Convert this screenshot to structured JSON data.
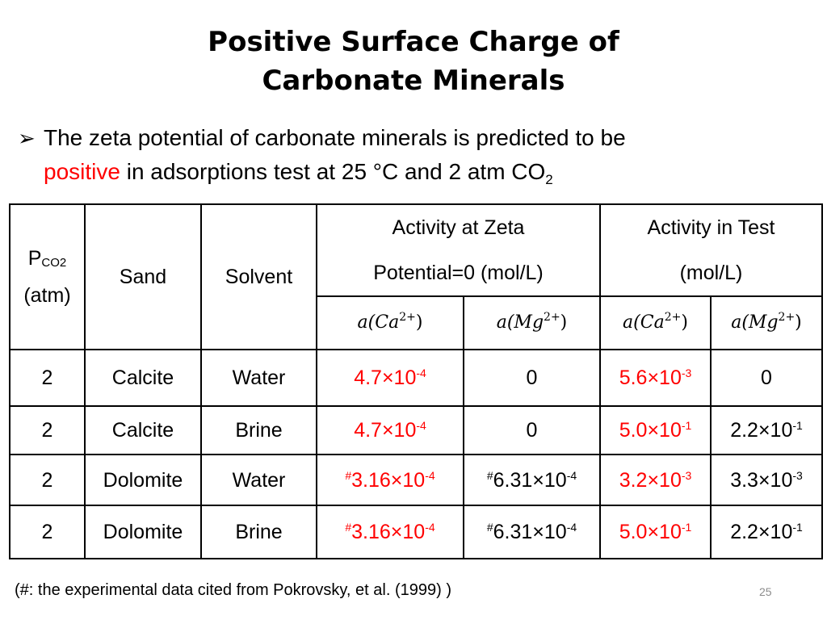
{
  "slide": {
    "title_line1": "Positive Surface Charge of",
    "title_line2": "Carbonate Minerals",
    "bullet": {
      "icon": "arrow-right-bullet",
      "text_part1": "The zeta potential of carbonate minerals is predicted to be",
      "highlight": "positive",
      "text_part2": " in adsorptions test at 25 °C and 2 atm CO",
      "subscript": "2"
    },
    "footnote": "(#: the experimental data cited from Pokrovsky, et al. (1999) )",
    "page_number": "25",
    "colors": {
      "highlight": "#ff0000",
      "border": "#000000",
      "page_number": "#8c8c8c"
    }
  },
  "table": {
    "headers": {
      "pco2_p": "P",
      "pco2_sub": "CO2",
      "pco2_unit": "(atm)",
      "sand": "Sand",
      "solvent": "Solvent",
      "zeta_line1": "Activity at Zeta",
      "zeta_line2": "Potential=0 (mol/L)",
      "test_line1": "Activity in Test",
      "test_line2": "(mol/L)",
      "sub": [
        {
          "a": "a(",
          "el": "Ca",
          "charge": "2+",
          "close": ")"
        },
        {
          "a": "a(",
          "el": "Mg",
          "charge": "2+",
          "close": ")"
        },
        {
          "a": "a(",
          "el": "Ca",
          "charge": "2+",
          "close": ")"
        },
        {
          "a": "a(",
          "el": "Mg",
          "charge": "2+",
          "close": ")"
        }
      ]
    },
    "rows": [
      {
        "pco2": "2",
        "sand": "Calcite",
        "solvent": "Water",
        "zeta_ca": {
          "hash": "",
          "mant": "4.7×10",
          "exp": "-4"
        },
        "zeta_mg": {
          "hash": "",
          "mant": "0",
          "exp": ""
        },
        "test_ca": {
          "mant": "5.6×10",
          "exp": "-3"
        },
        "test_mg": {
          "mant": "0",
          "exp": ""
        }
      },
      {
        "pco2": "2",
        "sand": "Calcite",
        "solvent": "Brine",
        "zeta_ca": {
          "hash": "",
          "mant": "4.7×10",
          "exp": "-4"
        },
        "zeta_mg": {
          "hash": "",
          "mant": "0",
          "exp": ""
        },
        "test_ca": {
          "mant": "5.0×10",
          "exp": "-1"
        },
        "test_mg": {
          "mant": "2.2×10",
          "exp": "-1"
        }
      },
      {
        "pco2": "2",
        "sand": "Dolomite",
        "solvent": "Water",
        "zeta_ca": {
          "hash": "#",
          "mant": "3.16×10",
          "exp": "-4"
        },
        "zeta_mg": {
          "hash": "#",
          "mant": "6.31×10",
          "exp": "-4"
        },
        "test_ca": {
          "mant": "3.2×10",
          "exp": "-3"
        },
        "test_mg": {
          "mant": "3.3×10",
          "exp": "-3"
        }
      },
      {
        "pco2": "2",
        "sand": "Dolomite",
        "solvent": "Brine",
        "zeta_ca": {
          "hash": "#",
          "mant": "3.16×10",
          "exp": "-4"
        },
        "zeta_mg": {
          "hash": "#",
          "mant": "6.31×10",
          "exp": "-4"
        },
        "test_ca": {
          "mant": "5.0×10",
          "exp": "-1"
        },
        "test_mg": {
          "mant": "2.2×10",
          "exp": "-1"
        }
      }
    ]
  }
}
